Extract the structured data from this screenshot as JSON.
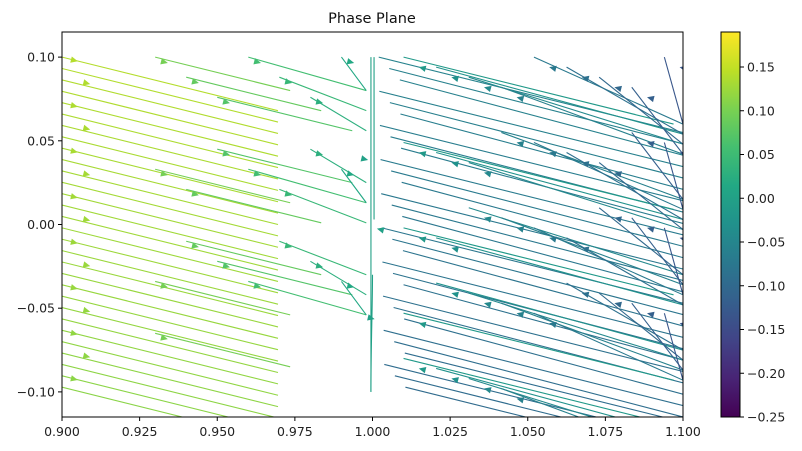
{
  "chart_data": {
    "type": "streamplot",
    "title": "Phase Plane",
    "xlabel": "",
    "ylabel": "",
    "xlim": [
      0.9,
      1.1
    ],
    "ylim": [
      -0.115,
      0.115
    ],
    "x_ticks": [
      0.9,
      0.925,
      0.95,
      0.975,
      1.0,
      1.025,
      1.05,
      1.075,
      1.1
    ],
    "x_tick_labels": [
      "0.900",
      "0.925",
      "0.950",
      "0.975",
      "1.000",
      "1.025",
      "1.050",
      "1.075",
      "1.100"
    ],
    "y_ticks": [
      -0.1,
      -0.05,
      0.0,
      0.05,
      0.1
    ],
    "y_tick_labels": [
      "−0.10",
      "−0.05",
      "0.00",
      "0.05",
      "0.10"
    ],
    "colormap": "viridis",
    "colorbar": {
      "range": [
        -0.25,
        0.19
      ],
      "ticks": [
        0.15,
        0.1,
        0.05,
        0.0,
        -0.05,
        -0.1,
        -0.15,
        -0.2,
        -0.25
      ],
      "tick_labels": [
        "0.15",
        "0.10",
        "0.05",
        "0.00",
        "−0.05",
        "−0.10",
        "−0.15",
        "−0.20",
        "−0.25"
      ]
    },
    "field": {
      "nullcline_x": 1.0,
      "upward_arrows_left_of_nullcline": true,
      "downward_arrows_right_of_nullcline": true
    },
    "grid": false,
    "legend": "none"
  }
}
